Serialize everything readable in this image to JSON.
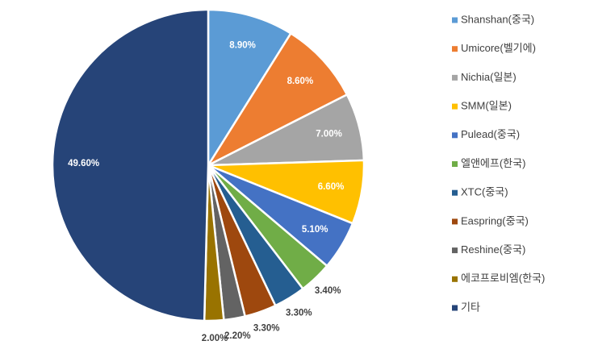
{
  "chart_data": {
    "type": "pie",
    "categories": [
      "Shanshan(중국)",
      "Umicore(벨기에)",
      "Nichia(일본)",
      "SMM(일본)",
      "Pulead(중국)",
      "엘앤에프(한국)",
      "XTC(중국)",
      "Easpring(중국)",
      "Reshine(중국)",
      "에코프로비엠(한국)",
      "기타"
    ],
    "values": [
      8.9,
      8.6,
      7.0,
      6.6,
      5.1,
      3.4,
      3.3,
      3.3,
      2.2,
      2.0,
      49.6
    ],
    "value_labels": [
      "8.90%",
      "8.60%",
      "7.00%",
      "6.60%",
      "5.10%",
      "3.40%",
      "3.30%",
      "3.30%",
      "2.20%",
      "2.00%",
      "49.60%"
    ],
    "colors": [
      "#5b9bd5",
      "#ed7d31",
      "#a5a5a5",
      "#ffc000",
      "#4472c4",
      "#70ad47",
      "#255e91",
      "#9e480e",
      "#636363",
      "#997300",
      "#264478"
    ]
  }
}
